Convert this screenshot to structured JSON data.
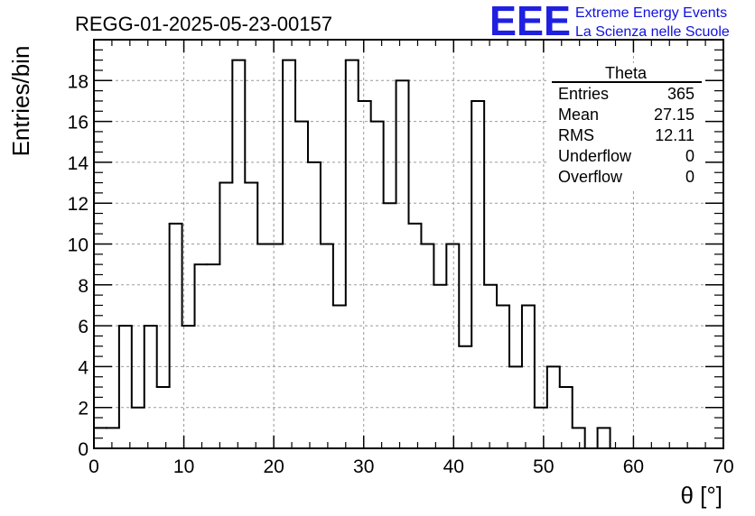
{
  "page_title": "REGG-01-2025-05-23-00157",
  "logo": {
    "text": "EEE",
    "line1": "Extreme Energy Events",
    "line2": "La Scienza nelle Scuole"
  },
  "stats": {
    "title": "Theta",
    "rows": [
      {
        "label": "Entries",
        "value": "365"
      },
      {
        "label": "Mean",
        "value": "27.15"
      },
      {
        "label": "RMS",
        "value": "12.11"
      },
      {
        "label": "Underflow",
        "value": "0"
      },
      {
        "label": "Overflow",
        "value": "0"
      }
    ]
  },
  "chart_data": {
    "type": "histogram",
    "title": "REGG-01-2025-05-23-00157",
    "xlabel": "θ [°]",
    "ylabel": "Entries/bin",
    "xlim": [
      0,
      70
    ],
    "ylim": [
      0,
      20
    ],
    "bin_width": 1.4,
    "bin_start": 0,
    "values": [
      1,
      1,
      6,
      2,
      6,
      3,
      11,
      6,
      9,
      9,
      13,
      19,
      13,
      10,
      10,
      19,
      16,
      14,
      10,
      7,
      19,
      17,
      16,
      12,
      18,
      11,
      10,
      8,
      10,
      5,
      17,
      8,
      7,
      4,
      7,
      2,
      4,
      3,
      1,
      0,
      1,
      0
    ],
    "x_ticks": [
      "0",
      "10",
      "20",
      "30",
      "40",
      "50",
      "60",
      "70"
    ],
    "y_ticks": [
      "0",
      "2",
      "4",
      "6",
      "8",
      "10",
      "12",
      "14",
      "16",
      "18"
    ],
    "grid": true,
    "line_color": "#000000",
    "grid_color": "#9a9a9a"
  }
}
